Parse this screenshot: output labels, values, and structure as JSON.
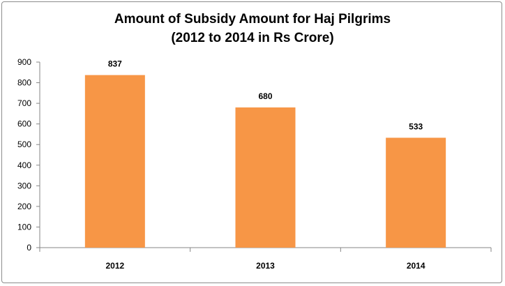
{
  "chart_data": {
    "type": "bar",
    "title": "Amount of Subsidy Amount for Haj Pilgrims",
    "subtitle": "(2012 to 2014 in Rs Crore)",
    "categories": [
      "2012",
      "2013",
      "2014"
    ],
    "values": [
      837,
      680,
      533
    ],
    "data_labels": [
      "837",
      "680",
      "533"
    ],
    "xlabel": "",
    "ylabel": "",
    "ylim": [
      0,
      900
    ],
    "yticks": [
      0,
      100,
      200,
      300,
      400,
      500,
      600,
      700,
      800,
      900
    ],
    "grid": false,
    "legend": "none",
    "bar_color": "#f79646"
  }
}
